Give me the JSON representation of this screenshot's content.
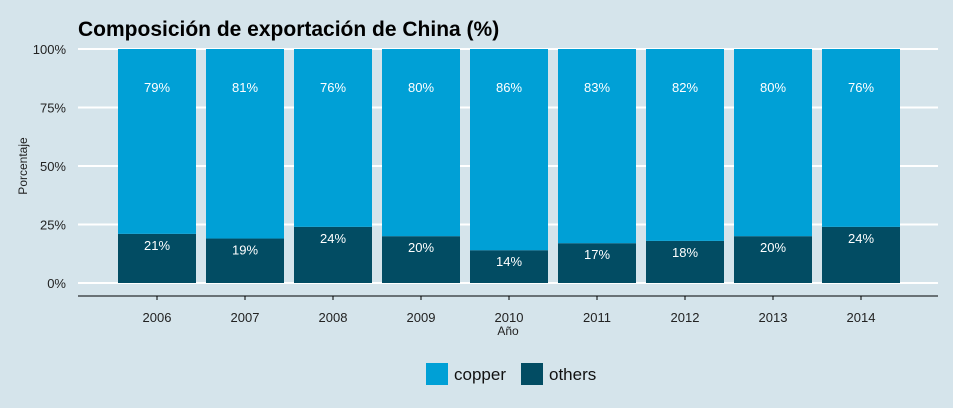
{
  "chart_data": {
    "type": "bar",
    "stacked": true,
    "title": "Composición de exportación de China (%)",
    "xlabel": "Año",
    "ylabel": "Porcentaje",
    "ylim": [
      0,
      100
    ],
    "yticks": [
      "0%",
      "25%",
      "50%",
      "75%",
      "100%"
    ],
    "ytick_values": [
      0,
      25,
      50,
      75,
      100
    ],
    "categories": [
      "2006",
      "2007",
      "2008",
      "2009",
      "2010",
      "2011",
      "2012",
      "2013",
      "2014"
    ],
    "series": [
      {
        "name": "others",
        "color": "#024c63",
        "values": [
          21,
          19,
          24,
          20,
          14,
          17,
          18,
          20,
          24
        ],
        "labels": [
          "21%",
          "19%",
          "24%",
          "20%",
          "14%",
          "17%",
          "18%",
          "20%",
          "24%"
        ]
      },
      {
        "name": "copper",
        "color": "#00a0d6",
        "values": [
          79,
          81,
          76,
          80,
          86,
          83,
          82,
          80,
          76
        ],
        "labels": [
          "79%",
          "81%",
          "76%",
          "80%",
          "86%",
          "83%",
          "82%",
          "80%",
          "76%"
        ]
      }
    ],
    "legend": {
      "position": "bottom",
      "entries": [
        "copper",
        "others"
      ]
    },
    "grid": true
  }
}
